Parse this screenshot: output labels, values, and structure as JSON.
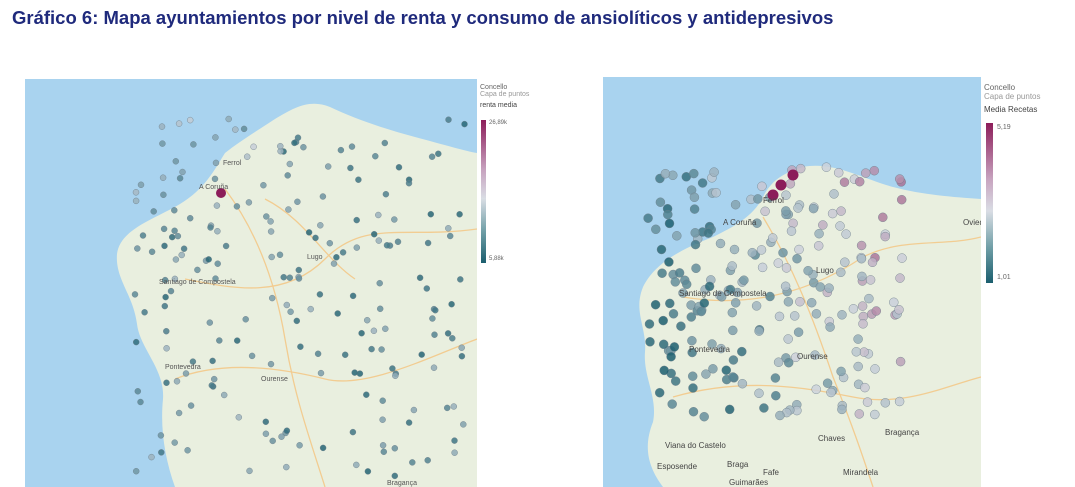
{
  "title": "Gráfico 6: Mapa ayuntamientos por nivel de renta y consumo de ansiolíticos y antidepresivos",
  "colors": {
    "title": "#1f2a7c",
    "sea": "#a9d3ef",
    "land": "#e9efdf",
    "high": "#8c1d5a",
    "mid": "#d9dde4",
    "low": "#1b5e6e"
  },
  "maps": [
    {
      "legend_title": "Concello",
      "legend_subtitle": "Capa de puntos",
      "measure": "renta media",
      "max_label": "26,89k",
      "min_label": "5,88k",
      "place_labels": [
        "A Coruña",
        "Santiago de Compostela",
        "Pontevedra",
        "Lugo",
        "Ourense",
        "Bragança",
        "Ferrol"
      ]
    },
    {
      "legend_title": "Concello",
      "legend_subtitle": "Capa de puntos",
      "measure": "Media Recetas",
      "max_label": "5,19",
      "min_label": "1,01",
      "place_labels": [
        "A Coruña",
        "Ferrol",
        "Santiago de Compostela",
        "Pontevedra",
        "Lugo",
        "Oviedo",
        "Viana do Castelo",
        "Esposende",
        "Braga",
        "Fafe",
        "Guimarães",
        "Chaves",
        "Bragança",
        "Mirandela",
        "Ourense"
      ]
    }
  ]
}
